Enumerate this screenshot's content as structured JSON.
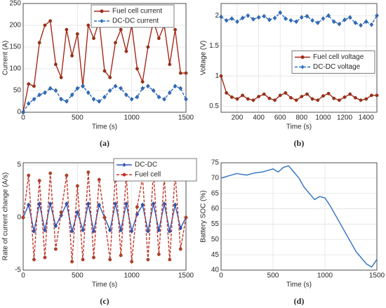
{
  "chart_data": [
    {
      "type": "line",
      "caption": "(a)",
      "x_label": "Time (s)",
      "y_label": "Current (A)",
      "x": [
        0,
        50,
        100,
        150,
        200,
        250,
        300,
        350,
        400,
        450,
        500,
        550,
        600,
        650,
        700,
        750,
        800,
        850,
        900,
        950,
        1000,
        1050,
        1100,
        1150,
        1200,
        1250,
        1300,
        1350,
        1400,
        1450,
        1500
      ],
      "series": [
        {
          "name": "Fuel cell current",
          "color": "#a52a1a",
          "marker": "o",
          "linestyle": "solid",
          "values": [
            0,
            65,
            60,
            160,
            200,
            210,
            110,
            80,
            190,
            130,
            180,
            60,
            200,
            170,
            210,
            95,
            80,
            160,
            190,
            140,
            200,
            100,
            70,
            150,
            210,
            170,
            200,
            110,
            190,
            90,
            90
          ]
        },
        {
          "name": "DC-DC current",
          "color": "#2e6fc0",
          "marker": "d",
          "linestyle": "dashed",
          "values": [
            0,
            20,
            30,
            40,
            45,
            55,
            50,
            30,
            25,
            40,
            55,
            60,
            45,
            30,
            25,
            35,
            50,
            60,
            55,
            40,
            30,
            35,
            55,
            60,
            50,
            35,
            30,
            45,
            60,
            55,
            30
          ]
        }
      ],
      "xlim": [
        0,
        1500
      ],
      "xticks": [
        0,
        500,
        1000,
        1500
      ],
      "ylim": [
        0,
        250
      ],
      "yticks": [
        0,
        50,
        100,
        150,
        200,
        250
      ],
      "grid": true,
      "legend": "upper center"
    },
    {
      "type": "line",
      "caption": "(b)",
      "x_label": "Time (s)",
      "y_label": "Voltage (V)",
      "x": [
        50,
        100,
        150,
        200,
        250,
        300,
        350,
        400,
        450,
        500,
        550,
        600,
        650,
        700,
        750,
        800,
        850,
        900,
        950,
        1000,
        1050,
        1100,
        1150,
        1200,
        1250,
        1300,
        1350,
        1400,
        1450,
        1500
      ],
      "series": [
        {
          "name": "Fuel cell voltage",
          "color": "#a52a1a",
          "marker": "o",
          "linestyle": "solid",
          "values": [
            1.0,
            0.72,
            0.65,
            0.62,
            0.68,
            0.62,
            0.6,
            0.66,
            0.7,
            0.63,
            0.6,
            0.68,
            0.72,
            0.64,
            0.6,
            0.66,
            0.7,
            0.62,
            0.6,
            0.67,
            0.71,
            0.63,
            0.6,
            0.65,
            0.7,
            0.64,
            0.6,
            0.62,
            0.68,
            0.68
          ]
        },
        {
          "name": "DC-DC voltage",
          "color": "#2e6fc0",
          "marker": "d",
          "linestyle": "dashed",
          "values": [
            1.98,
            1.92,
            1.95,
            1.9,
            1.96,
            2.0,
            1.94,
            1.97,
            1.99,
            1.93,
            1.96,
            2.05,
            1.95,
            1.92,
            1.9,
            1.97,
            1.99,
            1.92,
            1.88,
            1.95,
            2.0,
            1.9,
            1.86,
            1.93,
            1.97,
            1.88,
            1.84,
            1.9,
            1.85,
            2.0
          ]
        }
      ],
      "xlim": [
        50,
        1500
      ],
      "xticks": [
        200,
        400,
        600,
        800,
        1000,
        1200,
        1400
      ],
      "ylim": [
        0.4,
        2.2
      ],
      "yticks": [
        0.5,
        1,
        1.5,
        2
      ],
      "grid": true,
      "legend": "center right"
    },
    {
      "type": "line",
      "caption": "(c)",
      "x_label": "Time (s)",
      "y_label": "Rate of current change (A/s)",
      "x": [
        0,
        50,
        100,
        150,
        200,
        250,
        300,
        350,
        400,
        450,
        500,
        550,
        600,
        650,
        700,
        750,
        800,
        850,
        900,
        950,
        1000,
        1050,
        1100,
        1150,
        1200,
        1250,
        1300,
        1350,
        1400,
        1450,
        1500
      ],
      "series": [
        {
          "name": "DC-DC",
          "color": "#2e55b8",
          "marker": "d",
          "linestyle": "solid",
          "values": [
            0,
            1.2,
            -1.3,
            1.3,
            -1.2,
            1.3,
            -0.8,
            0.2,
            1.3,
            -1.3,
            0.5,
            -1.2,
            1.3,
            -1.3,
            1.2,
            0,
            -1.2,
            1.3,
            -1.2,
            1.3,
            -1.3,
            0.3,
            1.2,
            -1.3,
            1.3,
            -1.2,
            1.3,
            -1.3,
            1.2,
            -1,
            0
          ]
        },
        {
          "name": "Fuel cell",
          "color": "#c0392b",
          "marker": "o",
          "linestyle": "dashed",
          "values": [
            0,
            4,
            -4,
            3.5,
            -3.8,
            4.2,
            -3,
            0.5,
            4,
            -4.2,
            3,
            -4,
            4.3,
            -3.8,
            3.6,
            0,
            -4,
            4.2,
            -3.6,
            4,
            -4.2,
            1,
            3.8,
            -4,
            4.3,
            -3.5,
            3.8,
            -4,
            4.2,
            -3,
            0
          ]
        }
      ],
      "xlim": [
        0,
        1500
      ],
      "xticks": [
        0,
        500,
        1000,
        1500
      ],
      "ylim": [
        -5,
        5.2
      ],
      "yticks": [
        -5,
        0,
        5
      ],
      "grid": true,
      "legend": "upper right"
    },
    {
      "type": "line",
      "caption": "(d)",
      "x_label": "Time (s)",
      "y_label": "Battery SOC (%)",
      "x": [
        0,
        50,
        100,
        150,
        200,
        250,
        300,
        350,
        400,
        450,
        500,
        550,
        600,
        650,
        700,
        750,
        800,
        850,
        900,
        950,
        1000,
        1050,
        1100,
        1150,
        1200,
        1250,
        1300,
        1350,
        1400,
        1450,
        1500
      ],
      "series": [
        {
          "color": "#2e6fc0",
          "linestyle": "solid",
          "values": [
            70,
            70.5,
            71,
            71.5,
            71.2,
            71,
            71.5,
            71.8,
            72,
            72.5,
            73,
            72,
            73.5,
            74,
            72,
            70,
            67,
            65,
            63,
            64,
            63.5,
            61,
            58,
            55,
            52,
            49,
            46,
            44,
            42,
            41,
            43.5
          ]
        }
      ],
      "xlim": [
        0,
        1500
      ],
      "xticks": [
        0,
        500,
        1000,
        1500
      ],
      "ylim": [
        40,
        75
      ],
      "yticks": [
        40,
        45,
        50,
        55,
        60,
        65,
        70,
        75
      ],
      "grid": true
    }
  ]
}
